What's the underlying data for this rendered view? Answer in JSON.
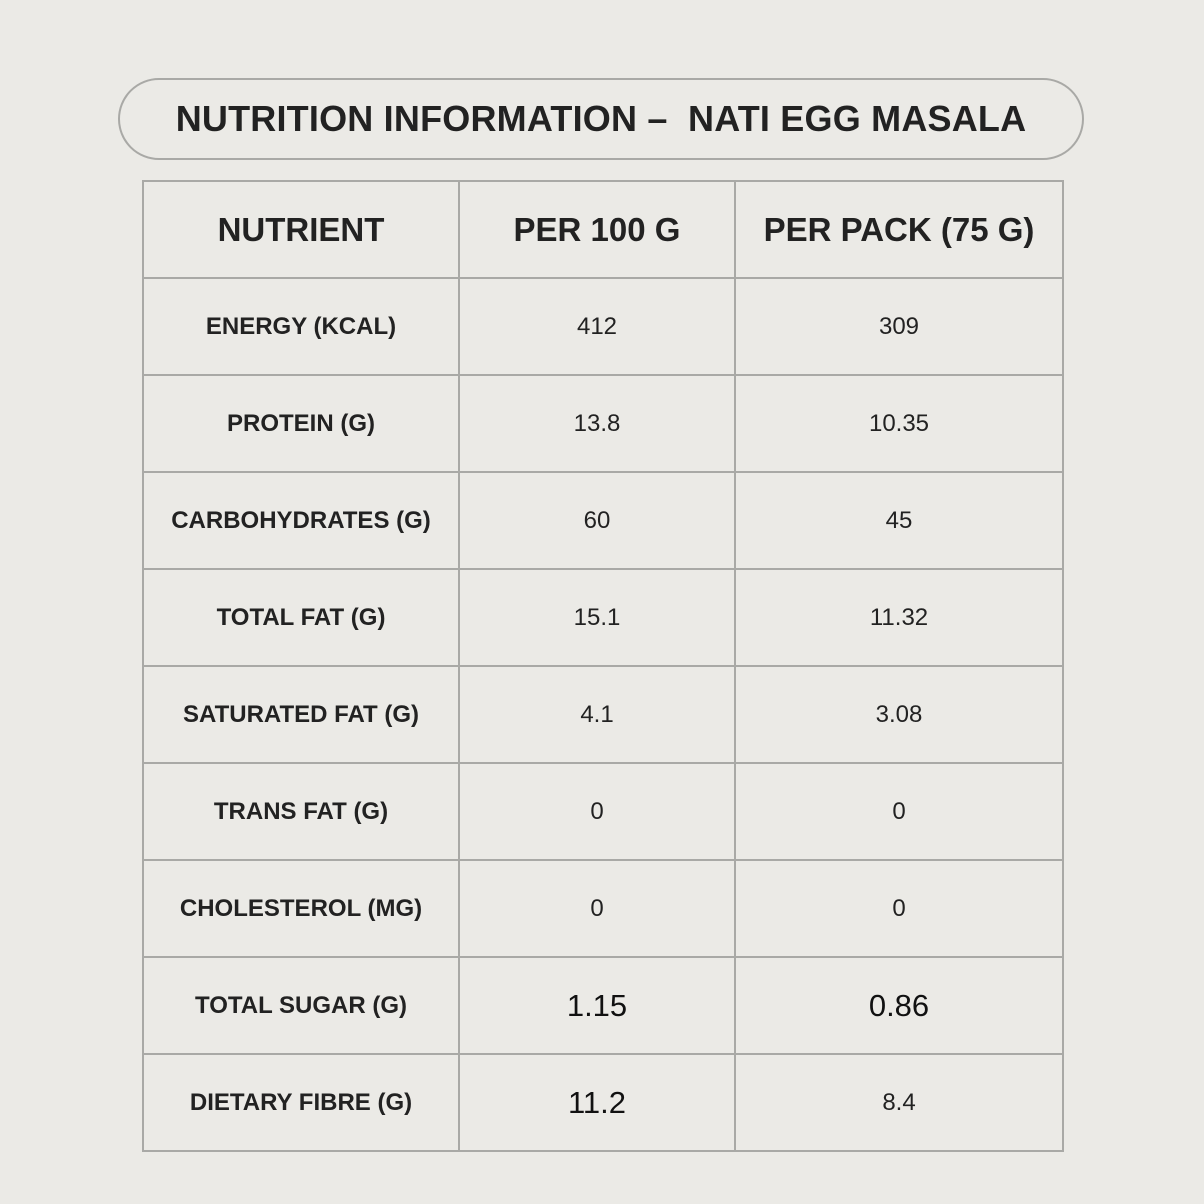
{
  "title": "NUTRITION INFORMATION –  NATI EGG MASALA",
  "table": {
    "headers": [
      "NUTRIENT",
      "PER 100 G",
      "PER PACK (75 G)"
    ],
    "rows": [
      {
        "nutrient": "ENERGY (KCAL)",
        "per_100g": "412",
        "per_pack": "309"
      },
      {
        "nutrient": "PROTEIN (G)",
        "per_100g": "13.8",
        "per_pack": "10.35"
      },
      {
        "nutrient": "CARBOHYDRATES (G)",
        "per_100g": "60",
        "per_pack": "45"
      },
      {
        "nutrient": "TOTAL FAT (G)",
        "per_100g": "15.1",
        "per_pack": "11.32"
      },
      {
        "nutrient": "SATURATED FAT (G)",
        "per_100g": "4.1",
        "per_pack": "3.08"
      },
      {
        "nutrient": "TRANS FAT (G)",
        "per_100g": "0",
        "per_pack": "0"
      },
      {
        "nutrient": "CHOLESTEROL (MG)",
        "per_100g": "0",
        "per_pack": "0"
      },
      {
        "nutrient": "TOTAL SUGAR (G)",
        "per_100g": "1.15",
        "per_pack": "0.86"
      },
      {
        "nutrient": "DIETARY FIBRE (G)",
        "per_100g": "11.2",
        "per_pack": "8.4"
      }
    ]
  },
  "colors": {
    "background": "#ebeae6",
    "border": "#a9a9a6",
    "text": "#222222"
  }
}
